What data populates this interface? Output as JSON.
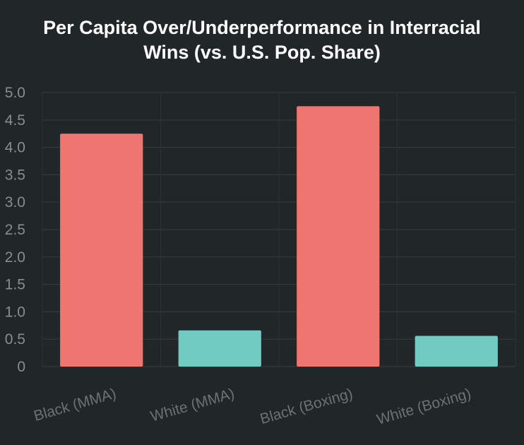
{
  "chart_data": {
    "type": "bar",
    "title_lines": [
      "Per Capita Over/Underperformance in Interracial",
      "Wins (vs. U.S. Pop. Share)"
    ],
    "categories": [
      "Black (MMA)",
      "White (MMA)",
      "Black (Boxing)",
      "White (Boxing)"
    ],
    "values": [
      4.25,
      0.66,
      4.75,
      0.56
    ],
    "bar_colors": [
      "#ef7670",
      "#72cbc2",
      "#ef7670",
      "#72cbc2"
    ],
    "ylim": [
      0,
      5.0
    ],
    "yticks": [
      "0",
      "0.5",
      "1.0",
      "1.5",
      "2.0",
      "2.5",
      "3.0",
      "3.5",
      "4.0",
      "4.5",
      "5.0"
    ],
    "xlabel": "",
    "ylabel": "",
    "grid": true,
    "background": "#212628"
  }
}
